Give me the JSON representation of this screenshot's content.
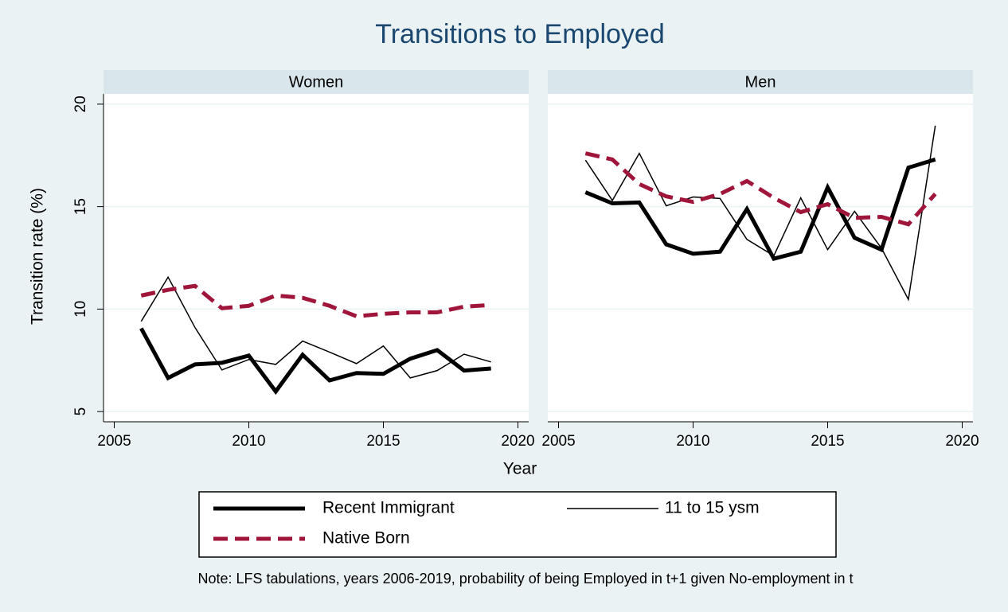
{
  "title": "Transitions to Employed",
  "y_label": "Transition rate (%)",
  "x_label": "Year",
  "note": "Note: LFS tabulations, years 2006-2019, probability of being Employed in t+1 given No-employment in t",
  "chart_data": [
    {
      "type": "line",
      "title": "Women",
      "x": [
        2006,
        2007,
        2008,
        2009,
        2010,
        2011,
        2012,
        2013,
        2014,
        2015,
        2016,
        2017,
        2018,
        2019
      ],
      "series": [
        {
          "name": "Recent Immigrant",
          "color": "#000000",
          "line_width": 5,
          "dashed": false,
          "values": [
            9.06,
            6.64,
            7.3,
            7.38,
            7.73,
            5.98,
            7.77,
            6.52,
            6.88,
            6.84,
            7.58,
            8.0,
            7.0,
            7.1
          ]
        },
        {
          "name": "11 to 15 ysm",
          "color": "#000000",
          "line_width": 1.5,
          "dashed": false,
          "values": [
            9.4,
            11.56,
            9.1,
            7.03,
            7.54,
            7.3,
            8.44,
            7.9,
            7.34,
            8.2,
            6.64,
            7.0,
            7.8,
            7.42
          ]
        },
        {
          "name": "Native Born",
          "color": "#a0163a",
          "line_width": 5,
          "dashed": true,
          "values": [
            10.66,
            10.94,
            11.13,
            10.04,
            10.16,
            10.66,
            10.55,
            10.16,
            9.65,
            9.77,
            9.84,
            9.84,
            10.12,
            10.2
          ]
        }
      ],
      "xlim": [
        2004.6,
        2020.4
      ],
      "xticks": [
        2005,
        2010,
        2015,
        2020
      ],
      "ylim": [
        4.5,
        20.5
      ],
      "yticks": [
        5,
        10,
        15,
        20
      ],
      "grid": true
    },
    {
      "type": "line",
      "title": "Men",
      "x": [
        2006,
        2007,
        2008,
        2009,
        2010,
        2011,
        2012,
        2013,
        2014,
        2015,
        2016,
        2017,
        2018,
        2019
      ],
      "series": [
        {
          "name": "Recent Immigrant",
          "color": "#000000",
          "line_width": 5,
          "dashed": false,
          "values": [
            15.7,
            15.16,
            15.2,
            13.16,
            12.7,
            12.8,
            14.88,
            12.46,
            12.8,
            15.94,
            13.48,
            12.9,
            16.9,
            17.3
          ]
        },
        {
          "name": "11 to 15 ysm",
          "color": "#000000",
          "line_width": 1.5,
          "dashed": false,
          "values": [
            17.27,
            15.3,
            17.6,
            15.04,
            15.47,
            15.4,
            13.4,
            12.6,
            15.43,
            12.9,
            14.77,
            12.97,
            10.47,
            18.95
          ]
        },
        {
          "name": "Native Born",
          "color": "#a0163a",
          "line_width": 5,
          "dashed": true,
          "values": [
            17.6,
            17.3,
            16.1,
            15.5,
            15.23,
            15.62,
            16.25,
            15.43,
            14.73,
            15.12,
            14.45,
            14.5,
            14.14,
            15.62
          ]
        }
      ],
      "xlim": [
        2004.6,
        2020.4
      ],
      "xticks": [
        2005,
        2010,
        2015,
        2020
      ],
      "ylim": [
        4.5,
        20.5
      ],
      "yticks": [
        5,
        10,
        15,
        20
      ],
      "grid": true
    }
  ]
}
